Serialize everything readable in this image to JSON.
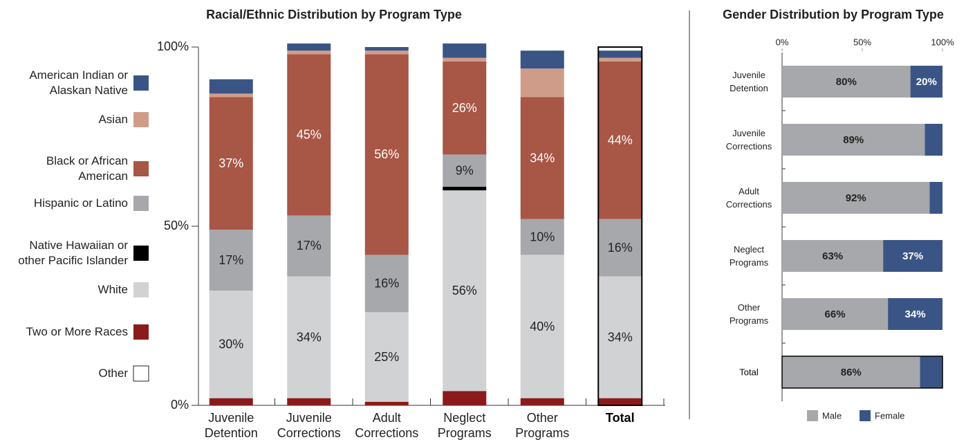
{
  "chart_data": [
    {
      "type": "bar",
      "stacked": true,
      "title": "Racial/Ethnic Distribution by Program Type",
      "categories": [
        "Juvenile Detention",
        "Juvenile Corrections",
        "Adult Corrections",
        "Neglect Programs",
        "Other Programs",
        "Total"
      ],
      "ylim": [
        0,
        100
      ],
      "yticks": [
        {
          "value": 0,
          "label": "0%"
        },
        {
          "value": 50,
          "label": "50%"
        },
        {
          "value": 100,
          "label": "100%"
        }
      ],
      "series": [
        {
          "name": "American Indian or Alaskan Native",
          "color": "#3a5585",
          "values": [
            4,
            2,
            1,
            4,
            5,
            2
          ]
        },
        {
          "name": "Asian",
          "color": "#d09c8a",
          "values": [
            1,
            1,
            1,
            1,
            8,
            1
          ]
        },
        {
          "name": "Black or African American",
          "color": "#a85645",
          "values": [
            37,
            45,
            56,
            26,
            34,
            44
          ],
          "value_labels": [
            "37%",
            "45%",
            "56%",
            "26%",
            "34%",
            "44%"
          ]
        },
        {
          "name": "Hispanic or Latino",
          "color": "#a7a8ab",
          "values": [
            17,
            17,
            16,
            9,
            10,
            16
          ],
          "value_labels": [
            "17%",
            "17%",
            "16%",
            "9%",
            "10%",
            "16%"
          ]
        },
        {
          "name": "Native Hawaiian or other Pacific Islander",
          "color": "#000000",
          "values": [
            0,
            0,
            0,
            1,
            0,
            0
          ]
        },
        {
          "name": "White",
          "color": "#d1d2d4",
          "values": [
            30,
            34,
            25,
            56,
            40,
            34
          ],
          "value_labels": [
            "30%",
            "34%",
            "25%",
            "56%",
            "40%",
            "34%"
          ]
        },
        {
          "name": "Two or More Races",
          "color": "#8b1a1a",
          "values": [
            2,
            2,
            1,
            4,
            2,
            2
          ]
        },
        {
          "name": "Other",
          "color": "#ffffff",
          "values": [
            null,
            null,
            null,
            null,
            null,
            null
          ]
        }
      ]
    },
    {
      "type": "bar",
      "orientation": "horizontal",
      "stacked": true,
      "title": "Gender Distribution by Program Type",
      "categories": [
        "Juvenile Detention",
        "Juvenile Corrections",
        "Adult Corrections",
        "Neglect Programs",
        "Other Programs",
        "Total"
      ],
      "xlim": [
        0,
        100
      ],
      "xticks": [
        {
          "value": 0,
          "label": "0%"
        },
        {
          "value": 50,
          "label": "50%"
        },
        {
          "value": 100,
          "label": "100%"
        }
      ],
      "series": [
        {
          "name": "Male",
          "color": "#a7a8ab",
          "values": [
            80,
            89,
            92,
            63,
            66,
            86
          ],
          "value_labels": [
            "80%",
            "89%",
            "92%",
            "63%",
            "66%",
            "86%"
          ]
        },
        {
          "name": "Female",
          "color": "#3a5585",
          "values": [
            20,
            11,
            8,
            37,
            34,
            14
          ],
          "value_labels": [
            "20%",
            null,
            null,
            "37%",
            "34%",
            null
          ]
        }
      ]
    }
  ]
}
